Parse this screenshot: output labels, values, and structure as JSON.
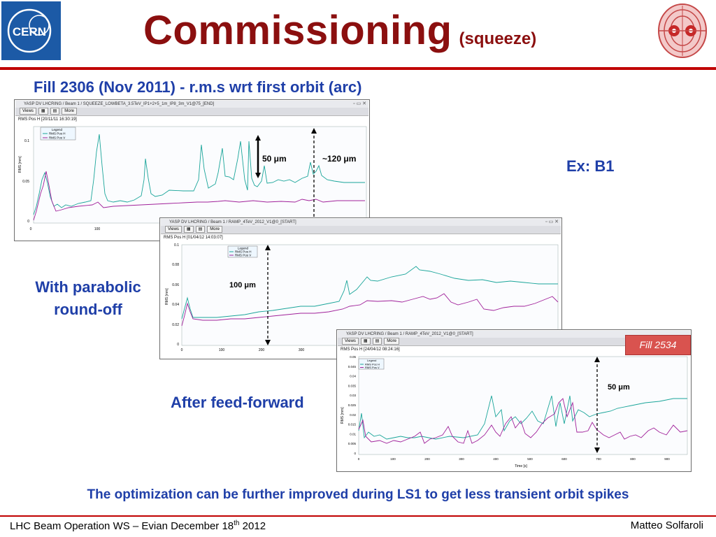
{
  "slide": {
    "title": "Commissioning",
    "title_sub": "(squeeze)",
    "subtitle": "Fill 2306 (Nov 2011) - r.m.s wrt first orbit (arc)",
    "label_ex": "Ex: B1",
    "label_parabolic": "With parabolic round-off",
    "label_feedforward": "After feed-forward",
    "bottom_note": "The optimization can be further improved during LS1 to get less transient orbit spikes",
    "footer_left": "LHC Beam Operation WS – Evian December 18",
    "footer_left_sup": "th",
    "footer_left_end": " 2012",
    "footer_right": "Matteo Solfaroli",
    "cern_logo_text": "CERN",
    "fill_badge": "Fill 2534",
    "colors": {
      "title": "#8b0f0f",
      "blue": "#1f3fa8",
      "rule": "#c00000",
      "series_h": "#1aa59a",
      "series_v": "#a0209a"
    }
  },
  "panels": [
    {
      "window_title": "YASP DV LHCRING / Beam 1 / SQUEEZE_LOWBETA_3.5TeV_IP1+2+5_1m_IP8_3m_V1@75_[END]",
      "toolbar": [
        "Views",
        "More"
      ],
      "header": "RMS Pos H [20/11/11 16:30:19]",
      "annotation_a": "50 μm",
      "annotation_b": "~120 μm",
      "ylabel": "RMS [mm]",
      "legend_title": "Legend",
      "legend_h": "RMS Pos H",
      "legend_v": "RMS Pos V",
      "yticks": [
        "0.1",
        "0.05",
        "0"
      ],
      "xticks": [
        "0",
        "100",
        "200",
        "300",
        "400"
      ]
    },
    {
      "window_title": "YASP DV LHCRING / Beam 1 / RAMP_4TeV_2012_V1@0_[START]",
      "toolbar": [
        "Views",
        "More"
      ],
      "header": "RMS Pos H [01/04/12 14:03:07]",
      "annotation_a": "100 μm",
      "ylabel": "RMS [mm]",
      "legend_title": "Legend",
      "legend_h": "RMS Pos H",
      "legend_v": "RMS Pos V",
      "yticks": [
        "0.1",
        "0.08",
        "0.06",
        "0.04",
        "0.02",
        "0"
      ],
      "xticks": [
        "0",
        "100",
        "200",
        "300"
      ]
    },
    {
      "window_title": "YASP DV LHCRING / Beam 1 / RAMP_4TeV_2012_V1@0_[START]",
      "toolbar": [
        "Views",
        "More"
      ],
      "header": "RMS Pos H [24/04/12 08:24:16]",
      "annotation_a": "50 μm",
      "ylabel": "RMS [mm]",
      "xlabel": "Time [s]",
      "legend_title": "Legend",
      "legend_h": "RMS Pos H",
      "legend_v": "RMS Pos V",
      "yticks": [
        "0.05",
        "0.045",
        "0.04",
        "0.035",
        "0.03",
        "0.025",
        "0.02",
        "0.015",
        "0.01",
        "0.005",
        "0"
      ],
      "xticks": [
        "0",
        "100",
        "200",
        "300",
        "400",
        "500",
        "600",
        "700",
        "800",
        "900"
      ]
    }
  ]
}
